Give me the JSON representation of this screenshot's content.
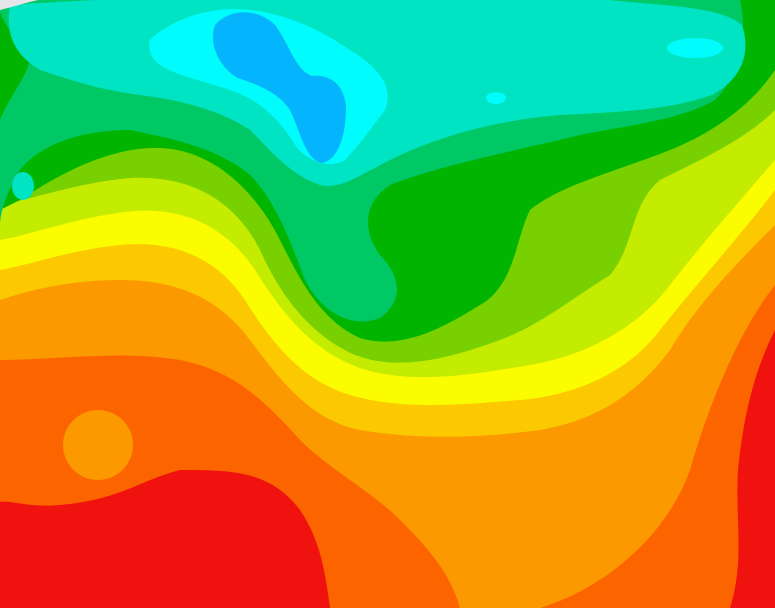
{
  "map": {
    "kind": "filled-contour-field",
    "labels_printed": false,
    "bands": [
      {
        "name": "lowest",
        "color": "#04b4fc"
      },
      {
        "name": "band-2",
        "color": "#00fcfc"
      },
      {
        "name": "band-3",
        "color": "#00e4c4"
      },
      {
        "name": "band-4",
        "color": "#00c864"
      },
      {
        "name": "band-5",
        "color": "#00b400"
      },
      {
        "name": "band-6",
        "color": "#78d000"
      },
      {
        "name": "band-7",
        "color": "#c4ec00"
      },
      {
        "name": "band-8",
        "color": "#fcfc00"
      },
      {
        "name": "band-9",
        "color": "#fcc800"
      },
      {
        "name": "band-10",
        "color": "#fc9800"
      },
      {
        "name": "band-11",
        "color": "#fc6400"
      },
      {
        "name": "highest",
        "color": "#f0120f"
      }
    ]
  }
}
